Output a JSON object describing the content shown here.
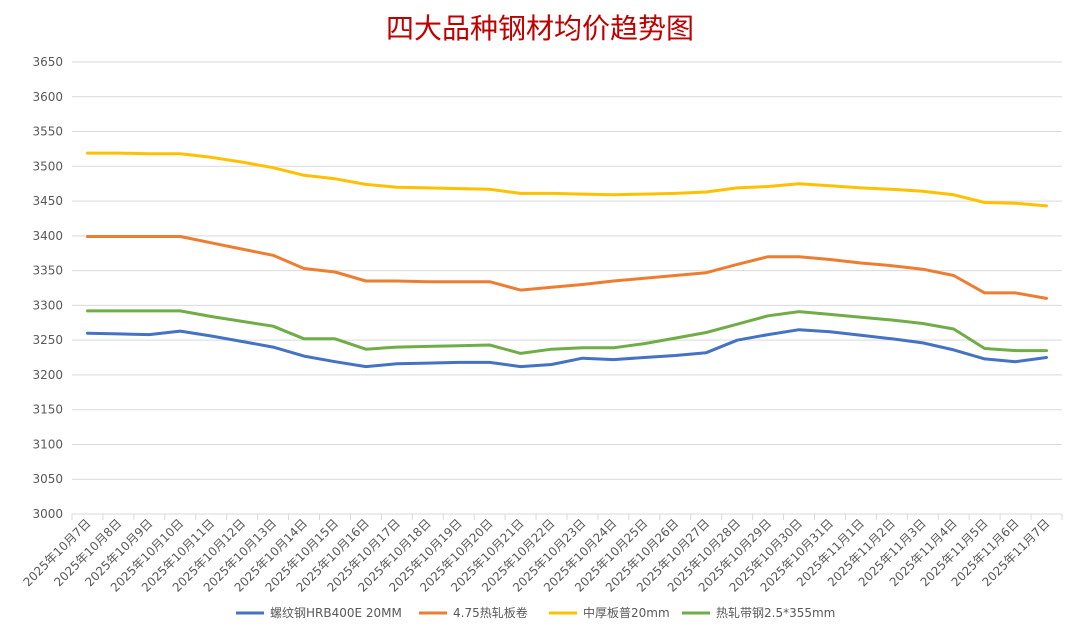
{
  "chart_data": {
    "type": "line",
    "title": "四大品种钢材均价趋势图",
    "ylim": [
      3000,
      3650
    ],
    "ytick_step": 50,
    "grid": true,
    "legend_position": "bottom",
    "categories": [
      "2025年10月7日",
      "2025年10月8日",
      "2025年10月9日",
      "2025年10月10日",
      "2025年10月11日",
      "2025年10月12日",
      "2025年10月13日",
      "2025年10月14日",
      "2025年10月15日",
      "2025年10月16日",
      "2025年10月17日",
      "2025年10月18日",
      "2025年10月19日",
      "2025年10月20日",
      "2025年10月21日",
      "2025年10月22日",
      "2025年10月23日",
      "2025年10月24日",
      "2025年10月25日",
      "2025年10月26日",
      "2025年10月27日",
      "2025年10月28日",
      "2025年10月29日",
      "2025年10月30日",
      "2025年10月31日",
      "2025年11月1日",
      "2025年11月2日",
      "2025年11月3日",
      "2025年11月4日",
      "2025年11月5日",
      "2025年11月6日",
      "2025年11月7日"
    ],
    "series": [
      {
        "name": "螺纹钢HRB400E 20MM",
        "color": "#4472c4",
        "values": [
          3260,
          3259,
          3258,
          3263,
          3256,
          3248,
          3240,
          3227,
          3219,
          3212,
          3216,
          3217,
          3218,
          3218,
          3212,
          3215,
          3224,
          3222,
          3225,
          3228,
          3232,
          3250,
          3258,
          3265,
          3262,
          3257,
          3252,
          3246,
          3236,
          3223,
          3219,
          3225
        ]
      },
      {
        "name": "4.75热轧板卷",
        "color": "#ed7d31",
        "values": [
          3399,
          3399,
          3399,
          3399,
          3390,
          3381,
          3372,
          3353,
          3348,
          3335,
          3335,
          3334,
          3334,
          3334,
          3322,
          3326,
          3330,
          3335,
          3339,
          3343,
          3347,
          3359,
          3370,
          3370,
          3366,
          3361,
          3357,
          3352,
          3343,
          3318,
          3318,
          3310
        ]
      },
      {
        "name": "中厚板普20mm",
        "color": "#ffc000",
        "values": [
          3519,
          3519,
          3518,
          3518,
          3513,
          3506,
          3498,
          3487,
          3482,
          3474,
          3470,
          3469,
          3468,
          3467,
          3461,
          3461,
          3460,
          3459,
          3460,
          3461,
          3463,
          3469,
          3471,
          3475,
          3472,
          3469,
          3467,
          3464,
          3459,
          3448,
          3447,
          3443
        ]
      },
      {
        "name": "热轧带钢2.5*355mm",
        "color": "#70ad47",
        "values": [
          3292,
          3292,
          3292,
          3292,
          3284,
          3277,
          3270,
          3252,
          3252,
          3237,
          3240,
          3241,
          3242,
          3243,
          3231,
          3237,
          3239,
          3239,
          3245,
          3253,
          3261,
          3273,
          3285,
          3291,
          3287,
          3283,
          3279,
          3274,
          3266,
          3238,
          3235,
          3235
        ]
      }
    ]
  }
}
